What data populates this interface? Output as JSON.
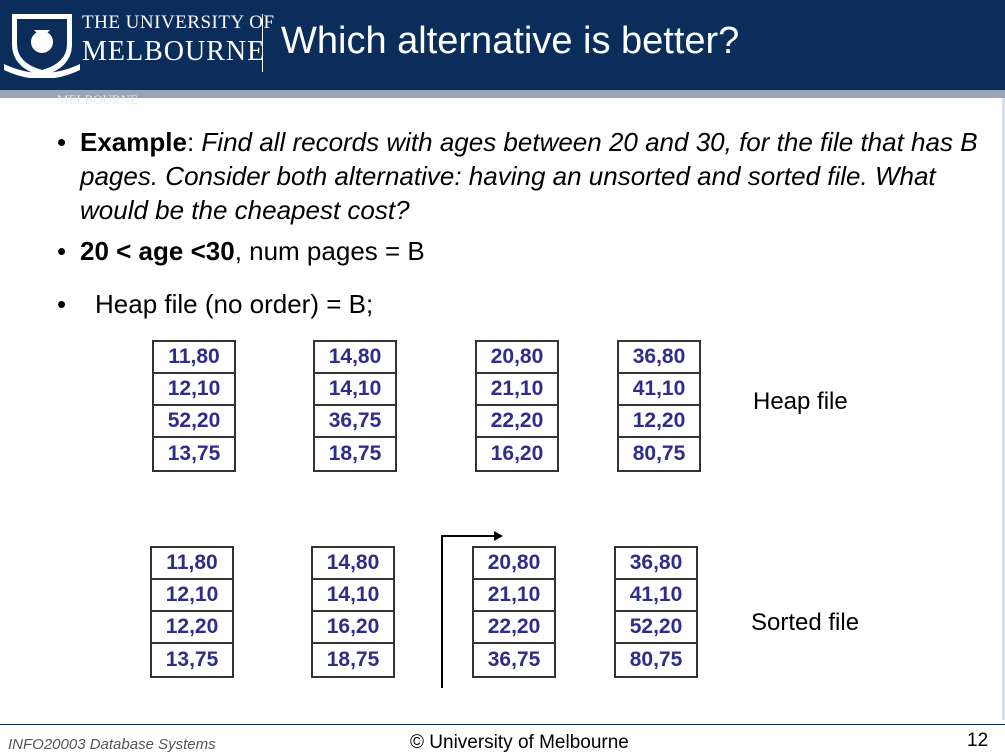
{
  "header": {
    "university_line1": "THE UNIVERSITY OF",
    "university_line2": "MELBOURNE",
    "title": "Which alternative is better?",
    "ghost_text": "MELBOURNE"
  },
  "bullets": {
    "example_label": "Example",
    "example_sep": ": ",
    "example_text": "Find all records with ages between 20 and 30, for the file that has B pages. Consider both alternative: having an unsorted and sorted file. What would be the cheapest cost?",
    "condition_bold": "20 < age <30",
    "condition_rest": ", num pages = B",
    "heap_text": "Heap file (no order) = B;"
  },
  "heap_file": {
    "label": "Heap file",
    "pages": [
      [
        "11,80",
        "12,10",
        "52,20",
        "13,75"
      ],
      [
        "14,80",
        "14,10",
        "36,75",
        "18,75"
      ],
      [
        "20,80",
        "21,10",
        "22,20",
        "16,20"
      ],
      [
        "36,80",
        "41,10",
        "12,20",
        "80,75"
      ]
    ]
  },
  "sorted_file": {
    "label": "Sorted file",
    "pages": [
      [
        "11,80",
        "12,10",
        "12,20",
        "13,75"
      ],
      [
        "14,80",
        "14,10",
        "16,20",
        "18,75"
      ],
      [
        "20,80",
        "21,10",
        "22,20",
        "36,75"
      ],
      [
        "36,80",
        "41,10",
        "52,20",
        "80,75"
      ]
    ]
  },
  "footer": {
    "course": "INFO20003 Database Systems",
    "copyright": "© University of Melbourne",
    "page_number": "12"
  },
  "colors": {
    "header_bg": "#0b2d5c",
    "record_text": "#2e2e8a"
  }
}
